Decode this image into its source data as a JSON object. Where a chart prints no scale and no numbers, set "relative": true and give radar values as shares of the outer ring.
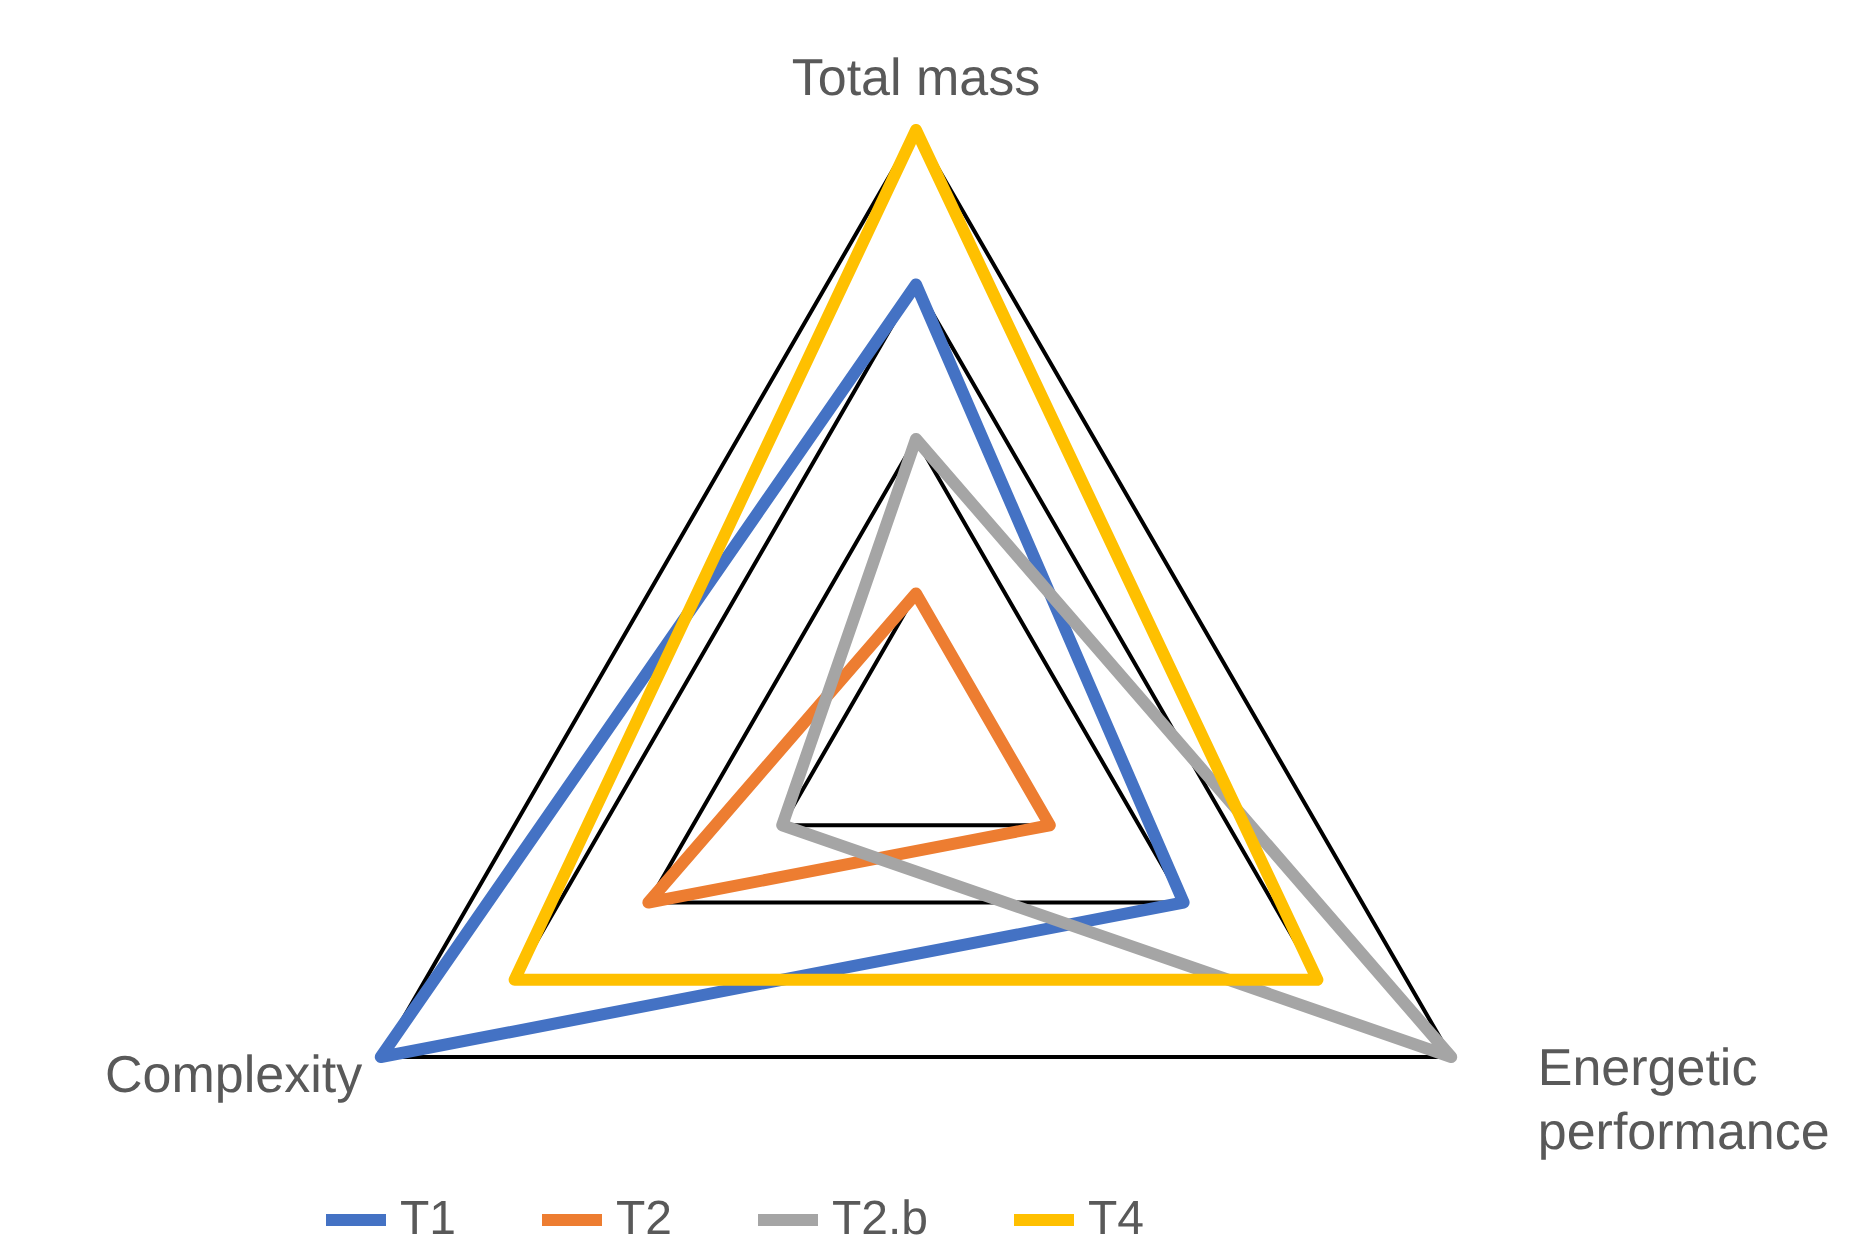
{
  "chart_data": {
    "type": "radar",
    "relative": true,
    "grid": true,
    "legend": "bottom",
    "categories": [
      "Total mass",
      "Energetic performance",
      "Complexity"
    ],
    "series": [
      {
        "name": "T1",
        "color": "#4472c4",
        "values": [
          0.75,
          0.5,
          1
        ]
      },
      {
        "name": "T2",
        "color": "#ed7d31",
        "values": [
          0.25,
          0.25,
          0.5
        ]
      },
      {
        "name": "T2.b",
        "color": "#a5a5a5",
        "values": [
          0.5,
          1,
          0.25
        ]
      },
      {
        "name": "T4",
        "color": "#ffc000",
        "values": [
          1,
          0.75,
          0.75
        ]
      }
    ]
  }
}
